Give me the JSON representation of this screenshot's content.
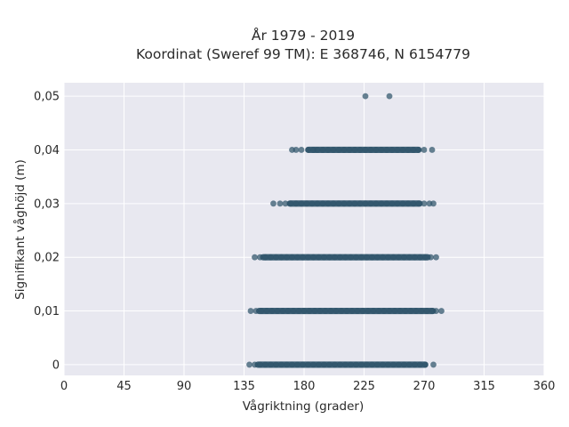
{
  "chart_data": {
    "type": "scatter",
    "title": "År 1979 - 2019",
    "subtitle": "Koordinat (Sweref 99 TM): E 368746, N 6154779",
    "xlabel": "Vågriktning (grader)",
    "ylabel": "Signifikant våghöjd (m)",
    "xlim": [
      0,
      360
    ],
    "ylim": [
      -0.002,
      0.0525
    ],
    "xticks": [
      0,
      45,
      90,
      135,
      180,
      225,
      270,
      315,
      360
    ],
    "xtick_labels": [
      "0",
      "45",
      "90",
      "135",
      "180",
      "225",
      "270",
      "315",
      "360"
    ],
    "yticks": [
      0,
      0.01,
      0.02,
      0.03,
      0.04,
      0.05
    ],
    "ytick_labels": [
      "0",
      "0,01",
      "0,02",
      "0,03",
      "0,04",
      "0,05"
    ],
    "grid": true,
    "background": "#e8e8f0",
    "point_color": "#2e536a",
    "series": [
      {
        "points": [
          {
            "x": 226,
            "y": 0.05
          },
          {
            "x": 244,
            "y": 0.05
          },
          {
            "x": 171,
            "y": 0.04
          },
          {
            "x": 174,
            "y": 0.04
          },
          {
            "x": 178,
            "y": 0.04
          },
          {
            "x": 183,
            "y": 0.04
          },
          {
            "x": 187,
            "y": 0.04
          },
          {
            "x": 190,
            "y": 0.04
          },
          {
            "x": 194,
            "y": 0.04
          },
          {
            "x": 198,
            "y": 0.04
          },
          {
            "x": 202,
            "y": 0.04
          },
          {
            "x": 206,
            "y": 0.04
          },
          {
            "x": 210,
            "y": 0.04
          },
          {
            "x": 214,
            "y": 0.04
          },
          {
            "x": 218,
            "y": 0.04
          },
          {
            "x": 222,
            "y": 0.04
          },
          {
            "x": 226,
            "y": 0.04
          },
          {
            "x": 230,
            "y": 0.04
          },
          {
            "x": 234,
            "y": 0.04
          },
          {
            "x": 238,
            "y": 0.04
          },
          {
            "x": 242,
            "y": 0.04
          },
          {
            "x": 246,
            "y": 0.04
          },
          {
            "x": 250,
            "y": 0.04
          },
          {
            "x": 254,
            "y": 0.04
          },
          {
            "x": 258,
            "y": 0.04
          },
          {
            "x": 262,
            "y": 0.04
          },
          {
            "x": 266,
            "y": 0.04
          },
          {
            "x": 270,
            "y": 0.04
          },
          {
            "x": 276,
            "y": 0.04
          },
          {
            "x": 157,
            "y": 0.03
          },
          {
            "x": 162,
            "y": 0.03
          },
          {
            "x": 166,
            "y": 0.03
          },
          {
            "x": 170,
            "y": 0.03
          },
          {
            "x": 174,
            "y": 0.03
          },
          {
            "x": 178,
            "y": 0.03
          },
          {
            "x": 182,
            "y": 0.03
          },
          {
            "x": 186,
            "y": 0.03
          },
          {
            "x": 190,
            "y": 0.03
          },
          {
            "x": 194,
            "y": 0.03
          },
          {
            "x": 198,
            "y": 0.03
          },
          {
            "x": 202,
            "y": 0.03
          },
          {
            "x": 206,
            "y": 0.03
          },
          {
            "x": 210,
            "y": 0.03
          },
          {
            "x": 214,
            "y": 0.03
          },
          {
            "x": 218,
            "y": 0.03
          },
          {
            "x": 222,
            "y": 0.03
          },
          {
            "x": 226,
            "y": 0.03
          },
          {
            "x": 230,
            "y": 0.03
          },
          {
            "x": 234,
            "y": 0.03
          },
          {
            "x": 238,
            "y": 0.03
          },
          {
            "x": 242,
            "y": 0.03
          },
          {
            "x": 246,
            "y": 0.03
          },
          {
            "x": 250,
            "y": 0.03
          },
          {
            "x": 254,
            "y": 0.03
          },
          {
            "x": 258,
            "y": 0.03
          },
          {
            "x": 262,
            "y": 0.03
          },
          {
            "x": 266,
            "y": 0.03
          },
          {
            "x": 270,
            "y": 0.03
          },
          {
            "x": 274,
            "y": 0.03
          },
          {
            "x": 277,
            "y": 0.03
          },
          {
            "x": 143,
            "y": 0.02
          },
          {
            "x": 147,
            "y": 0.02
          },
          {
            "x": 151,
            "y": 0.02
          },
          {
            "x": 155,
            "y": 0.02
          },
          {
            "x": 159,
            "y": 0.02
          },
          {
            "x": 163,
            "y": 0.02
          },
          {
            "x": 167,
            "y": 0.02
          },
          {
            "x": 171,
            "y": 0.02
          },
          {
            "x": 175,
            "y": 0.02
          },
          {
            "x": 179,
            "y": 0.02
          },
          {
            "x": 183,
            "y": 0.02
          },
          {
            "x": 187,
            "y": 0.02
          },
          {
            "x": 191,
            "y": 0.02
          },
          {
            "x": 195,
            "y": 0.02
          },
          {
            "x": 199,
            "y": 0.02
          },
          {
            "x": 203,
            "y": 0.02
          },
          {
            "x": 207,
            "y": 0.02
          },
          {
            "x": 211,
            "y": 0.02
          },
          {
            "x": 215,
            "y": 0.02
          },
          {
            "x": 219,
            "y": 0.02
          },
          {
            "x": 223,
            "y": 0.02
          },
          {
            "x": 227,
            "y": 0.02
          },
          {
            "x": 231,
            "y": 0.02
          },
          {
            "x": 235,
            "y": 0.02
          },
          {
            "x": 239,
            "y": 0.02
          },
          {
            "x": 243,
            "y": 0.02
          },
          {
            "x": 247,
            "y": 0.02
          },
          {
            "x": 251,
            "y": 0.02
          },
          {
            "x": 255,
            "y": 0.02
          },
          {
            "x": 259,
            "y": 0.02
          },
          {
            "x": 263,
            "y": 0.02
          },
          {
            "x": 267,
            "y": 0.02
          },
          {
            "x": 271,
            "y": 0.02
          },
          {
            "x": 275,
            "y": 0.02
          },
          {
            "x": 279,
            "y": 0.02
          },
          {
            "x": 140,
            "y": 0.01
          },
          {
            "x": 144,
            "y": 0.01
          },
          {
            "x": 148,
            "y": 0.01
          },
          {
            "x": 152,
            "y": 0.01
          },
          {
            "x": 156,
            "y": 0.01
          },
          {
            "x": 160,
            "y": 0.01
          },
          {
            "x": 164,
            "y": 0.01
          },
          {
            "x": 168,
            "y": 0.01
          },
          {
            "x": 172,
            "y": 0.01
          },
          {
            "x": 176,
            "y": 0.01
          },
          {
            "x": 180,
            "y": 0.01
          },
          {
            "x": 184,
            "y": 0.01
          },
          {
            "x": 188,
            "y": 0.01
          },
          {
            "x": 192,
            "y": 0.01
          },
          {
            "x": 196,
            "y": 0.01
          },
          {
            "x": 200,
            "y": 0.01
          },
          {
            "x": 204,
            "y": 0.01
          },
          {
            "x": 208,
            "y": 0.01
          },
          {
            "x": 212,
            "y": 0.01
          },
          {
            "x": 216,
            "y": 0.01
          },
          {
            "x": 220,
            "y": 0.01
          },
          {
            "x": 224,
            "y": 0.01
          },
          {
            "x": 228,
            "y": 0.01
          },
          {
            "x": 232,
            "y": 0.01
          },
          {
            "x": 236,
            "y": 0.01
          },
          {
            "x": 240,
            "y": 0.01
          },
          {
            "x": 244,
            "y": 0.01
          },
          {
            "x": 248,
            "y": 0.01
          },
          {
            "x": 252,
            "y": 0.01
          },
          {
            "x": 256,
            "y": 0.01
          },
          {
            "x": 260,
            "y": 0.01
          },
          {
            "x": 264,
            "y": 0.01
          },
          {
            "x": 268,
            "y": 0.01
          },
          {
            "x": 272,
            "y": 0.01
          },
          {
            "x": 276,
            "y": 0.01
          },
          {
            "x": 279,
            "y": 0.01
          },
          {
            "x": 283,
            "y": 0.01
          },
          {
            "x": 139,
            "y": 0
          },
          {
            "x": 143,
            "y": 0
          },
          {
            "x": 147,
            "y": 0
          },
          {
            "x": 151,
            "y": 0
          },
          {
            "x": 155,
            "y": 0
          },
          {
            "x": 159,
            "y": 0
          },
          {
            "x": 163,
            "y": 0
          },
          {
            "x": 167,
            "y": 0
          },
          {
            "x": 171,
            "y": 0
          },
          {
            "x": 175,
            "y": 0
          },
          {
            "x": 179,
            "y": 0
          },
          {
            "x": 183,
            "y": 0
          },
          {
            "x": 187,
            "y": 0
          },
          {
            "x": 191,
            "y": 0
          },
          {
            "x": 195,
            "y": 0
          },
          {
            "x": 199,
            "y": 0
          },
          {
            "x": 203,
            "y": 0
          },
          {
            "x": 207,
            "y": 0
          },
          {
            "x": 211,
            "y": 0
          },
          {
            "x": 215,
            "y": 0
          },
          {
            "x": 219,
            "y": 0
          },
          {
            "x": 223,
            "y": 0
          },
          {
            "x": 227,
            "y": 0
          },
          {
            "x": 231,
            "y": 0
          },
          {
            "x": 235,
            "y": 0
          },
          {
            "x": 239,
            "y": 0
          },
          {
            "x": 243,
            "y": 0
          },
          {
            "x": 247,
            "y": 0
          },
          {
            "x": 251,
            "y": 0
          },
          {
            "x": 255,
            "y": 0
          },
          {
            "x": 259,
            "y": 0
          },
          {
            "x": 263,
            "y": 0
          },
          {
            "x": 267,
            "y": 0
          },
          {
            "x": 271,
            "y": 0
          },
          {
            "x": 277,
            "y": 0
          }
        ]
      }
    ]
  }
}
